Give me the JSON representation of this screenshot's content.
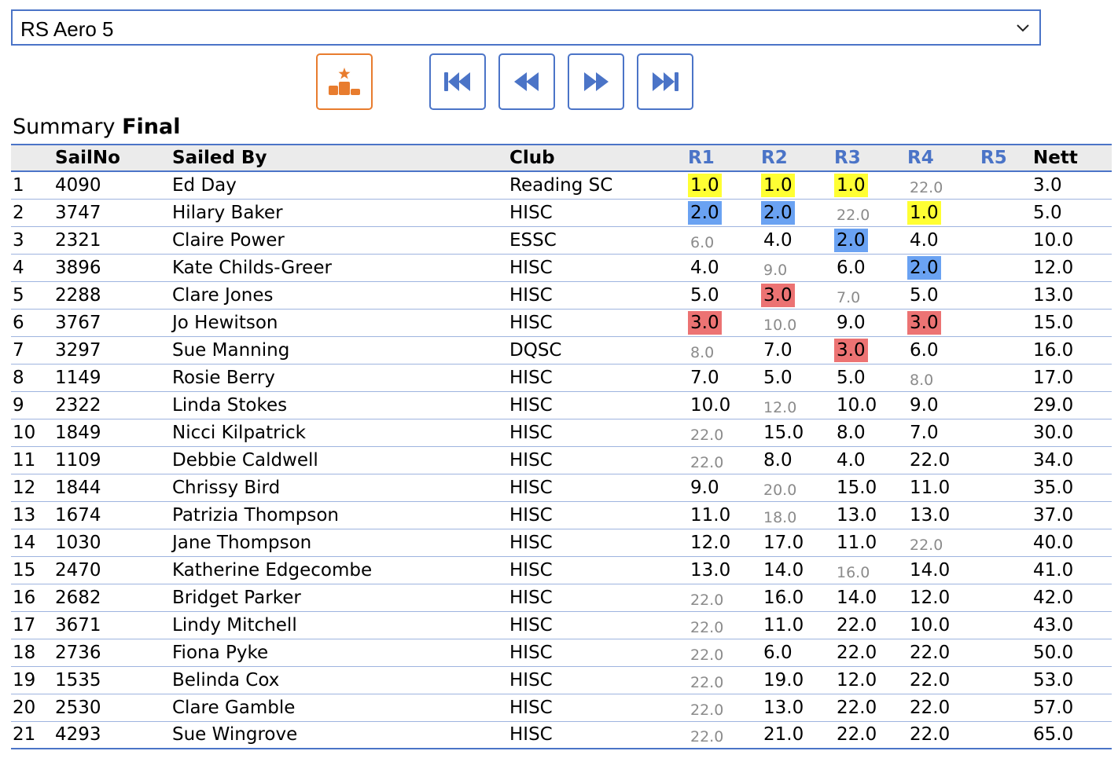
{
  "class_select": {
    "value": "RS Aero 5"
  },
  "toolbar": {
    "podium_icon": "podium-icon",
    "first_icon": "skip-to-first-icon",
    "prev_icon": "rewind-icon",
    "next_icon": "fast-forward-icon",
    "last_icon": "skip-to-last-icon"
  },
  "summary": {
    "label": "Summary",
    "status": "Final"
  },
  "columns": [
    "",
    "SailNo",
    "Sailed By",
    "Club",
    "R1",
    "R2",
    "R3",
    "R4",
    "R5",
    "Nett"
  ],
  "colors": {
    "accent": "#4b74c7",
    "podium": "#e87c2e",
    "first": "#ffff33",
    "second": "#6aa2f2",
    "third": "#ec7373",
    "discard": "#8b8b8b"
  },
  "rows": [
    {
      "pos": "1",
      "sail": "4090",
      "name": "Ed Day",
      "club": "Reading SC",
      "r": [
        [
          "1.0",
          "gold"
        ],
        [
          "1.0",
          "gold"
        ],
        [
          "1.0",
          "gold"
        ],
        [
          "22.0",
          "disc"
        ],
        [
          "",
          ""
        ]
      ],
      "nett": "3.0"
    },
    {
      "pos": "2",
      "sail": "3747",
      "name": "Hilary Baker",
      "club": "HISC",
      "r": [
        [
          "2.0",
          "silver"
        ],
        [
          "2.0",
          "silver"
        ],
        [
          "22.0",
          "disc"
        ],
        [
          "1.0",
          "gold"
        ],
        [
          "",
          ""
        ]
      ],
      "nett": "5.0"
    },
    {
      "pos": "3",
      "sail": "2321",
      "name": "Claire Power",
      "club": "ESSC",
      "r": [
        [
          "6.0",
          "disc"
        ],
        [
          "4.0",
          ""
        ],
        [
          "2.0",
          "silver"
        ],
        [
          "4.0",
          ""
        ],
        [
          "",
          ""
        ]
      ],
      "nett": "10.0"
    },
    {
      "pos": "4",
      "sail": "3896",
      "name": "Kate Childs-Greer",
      "club": "HISC",
      "r": [
        [
          "4.0",
          ""
        ],
        [
          "9.0",
          "disc"
        ],
        [
          "6.0",
          ""
        ],
        [
          "2.0",
          "silver"
        ],
        [
          "",
          ""
        ]
      ],
      "nett": "12.0"
    },
    {
      "pos": "5",
      "sail": "2288",
      "name": "Clare Jones",
      "club": "HISC",
      "r": [
        [
          "5.0",
          ""
        ],
        [
          "3.0",
          "bronze"
        ],
        [
          "7.0",
          "disc"
        ],
        [
          "5.0",
          ""
        ],
        [
          "",
          ""
        ]
      ],
      "nett": "13.0"
    },
    {
      "pos": "6",
      "sail": "3767",
      "name": "Jo Hewitson",
      "club": "HISC",
      "r": [
        [
          "3.0",
          "bronze"
        ],
        [
          "10.0",
          "disc"
        ],
        [
          "9.0",
          ""
        ],
        [
          "3.0",
          "bronze"
        ],
        [
          "",
          ""
        ]
      ],
      "nett": "15.0"
    },
    {
      "pos": "7",
      "sail": "3297",
      "name": "Sue Manning",
      "club": "DQSC",
      "r": [
        [
          "8.0",
          "disc"
        ],
        [
          "7.0",
          ""
        ],
        [
          "3.0",
          "bronze"
        ],
        [
          "6.0",
          ""
        ],
        [
          "",
          ""
        ]
      ],
      "nett": "16.0"
    },
    {
      "pos": "8",
      "sail": "1149",
      "name": "Rosie Berry",
      "club": "HISC",
      "r": [
        [
          "7.0",
          ""
        ],
        [
          "5.0",
          ""
        ],
        [
          "5.0",
          ""
        ],
        [
          "8.0",
          "disc"
        ],
        [
          "",
          ""
        ]
      ],
      "nett": "17.0"
    },
    {
      "pos": "9",
      "sail": "2322",
      "name": "Linda Stokes",
      "club": "HISC",
      "r": [
        [
          "10.0",
          ""
        ],
        [
          "12.0",
          "disc"
        ],
        [
          "10.0",
          ""
        ],
        [
          "9.0",
          ""
        ],
        [
          "",
          ""
        ]
      ],
      "nett": "29.0"
    },
    {
      "pos": "10",
      "sail": "1849",
      "name": "Nicci Kilpatrick",
      "club": "HISC",
      "r": [
        [
          "22.0",
          "disc"
        ],
        [
          "15.0",
          ""
        ],
        [
          "8.0",
          ""
        ],
        [
          "7.0",
          ""
        ],
        [
          "",
          ""
        ]
      ],
      "nett": "30.0"
    },
    {
      "pos": "11",
      "sail": "1109",
      "name": "Debbie Caldwell",
      "club": "HISC",
      "r": [
        [
          "22.0",
          "disc"
        ],
        [
          "8.0",
          ""
        ],
        [
          "4.0",
          ""
        ],
        [
          "22.0",
          ""
        ],
        [
          "",
          ""
        ]
      ],
      "nett": "34.0"
    },
    {
      "pos": "12",
      "sail": "1844",
      "name": "Chrissy Bird",
      "club": "HISC",
      "r": [
        [
          "9.0",
          ""
        ],
        [
          "20.0",
          "disc"
        ],
        [
          "15.0",
          ""
        ],
        [
          "11.0",
          ""
        ],
        [
          "",
          ""
        ]
      ],
      "nett": "35.0"
    },
    {
      "pos": "13",
      "sail": "1674",
      "name": "Patrizia Thompson",
      "club": "HISC",
      "r": [
        [
          "11.0",
          ""
        ],
        [
          "18.0",
          "disc"
        ],
        [
          "13.0",
          ""
        ],
        [
          "13.0",
          ""
        ],
        [
          "",
          ""
        ]
      ],
      "nett": "37.0"
    },
    {
      "pos": "14",
      "sail": "1030",
      "name": "Jane Thompson",
      "club": "HISC",
      "r": [
        [
          "12.0",
          ""
        ],
        [
          "17.0",
          ""
        ],
        [
          "11.0",
          ""
        ],
        [
          "22.0",
          "disc"
        ],
        [
          "",
          ""
        ]
      ],
      "nett": "40.0"
    },
    {
      "pos": "15",
      "sail": "2470",
      "name": "Katherine Edgecombe",
      "club": "HISC",
      "r": [
        [
          "13.0",
          ""
        ],
        [
          "14.0",
          ""
        ],
        [
          "16.0",
          "disc"
        ],
        [
          "14.0",
          ""
        ],
        [
          "",
          ""
        ]
      ],
      "nett": "41.0"
    },
    {
      "pos": "16",
      "sail": "2682",
      "name": "Bridget Parker",
      "club": "HISC",
      "r": [
        [
          "22.0",
          "disc"
        ],
        [
          "16.0",
          ""
        ],
        [
          "14.0",
          ""
        ],
        [
          "12.0",
          ""
        ],
        [
          "",
          ""
        ]
      ],
      "nett": "42.0"
    },
    {
      "pos": "17",
      "sail": "3671",
      "name": "Lindy Mitchell",
      "club": "HISC",
      "r": [
        [
          "22.0",
          "disc"
        ],
        [
          "11.0",
          ""
        ],
        [
          "22.0",
          ""
        ],
        [
          "10.0",
          ""
        ],
        [
          "",
          ""
        ]
      ],
      "nett": "43.0"
    },
    {
      "pos": "18",
      "sail": "2736",
      "name": "Fiona Pyke",
      "club": "HISC",
      "r": [
        [
          "22.0",
          "disc"
        ],
        [
          "6.0",
          ""
        ],
        [
          "22.0",
          ""
        ],
        [
          "22.0",
          ""
        ],
        [
          "",
          ""
        ]
      ],
      "nett": "50.0"
    },
    {
      "pos": "19",
      "sail": "1535",
      "name": "Belinda Cox",
      "club": "HISC",
      "r": [
        [
          "22.0",
          "disc"
        ],
        [
          "19.0",
          ""
        ],
        [
          "12.0",
          ""
        ],
        [
          "22.0",
          ""
        ],
        [
          "",
          ""
        ]
      ],
      "nett": "53.0"
    },
    {
      "pos": "20",
      "sail": "2530",
      "name": "Clare Gamble",
      "club": "HISC",
      "r": [
        [
          "22.0",
          "disc"
        ],
        [
          "13.0",
          ""
        ],
        [
          "22.0",
          ""
        ],
        [
          "22.0",
          ""
        ],
        [
          "",
          ""
        ]
      ],
      "nett": "57.0"
    },
    {
      "pos": "21",
      "sail": "4293",
      "name": "Sue Wingrove",
      "club": "HISC",
      "r": [
        [
          "22.0",
          "disc"
        ],
        [
          "21.0",
          ""
        ],
        [
          "22.0",
          ""
        ],
        [
          "22.0",
          ""
        ],
        [
          "",
          ""
        ]
      ],
      "nett": "65.0"
    }
  ]
}
